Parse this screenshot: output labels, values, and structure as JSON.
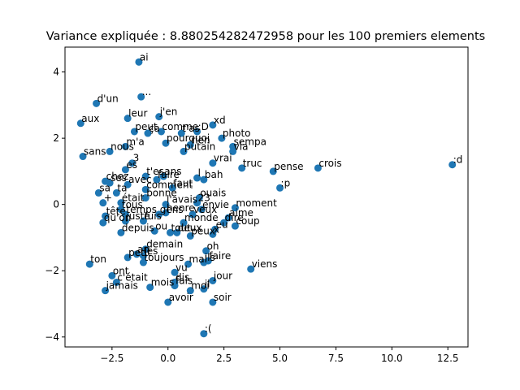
{
  "chart_data": {
    "type": "scatter",
    "title": "Variance expliquée : 8.880254282472958 pour les 100 premiers elements",
    "xlabel": "",
    "ylabel": "",
    "xlim": [
      -4.6,
      13.4
    ],
    "ylim": [
      -4.3,
      4.75
    ],
    "xticks": [
      -2.5,
      0.0,
      2.5,
      5.0,
      7.5,
      10.0,
      12.5
    ],
    "xtick_labels": [
      "−2.5",
      "0.0",
      "2.5",
      "5.0",
      "7.5",
      "10.0",
      "12.5"
    ],
    "yticks": [
      -4,
      -2,
      0,
      2,
      4
    ],
    "ytick_labels": [
      "−4",
      "−2",
      "0",
      "2",
      "4"
    ],
    "grid": false,
    "color": "#1f77b4",
    "points": [
      {
        "label": "ai",
        "x": -1.3,
        "y": 4.3
      },
      {
        "label": "...",
        "x": -1.2,
        "y": 3.25
      },
      {
        "label": "d'un",
        "x": -3.2,
        "y": 3.05
      },
      {
        "label": "aux",
        "x": -3.9,
        "y": 2.45
      },
      {
        "label": "leur",
        "x": -1.8,
        "y": 2.6
      },
      {
        "label": "j'en",
        "x": -0.4,
        "y": 2.65
      },
      {
        "label": "xd",
        "x": 2.0,
        "y": 2.4
      },
      {
        "label": "peut",
        "x": -1.5,
        "y": 2.2
      },
      {
        "label": "ça",
        "x": -0.9,
        "y": 2.15
      },
      {
        "label": "comme",
        "x": -0.3,
        "y": 2.2
      },
      {
        "label": "t'as",
        "x": 0.6,
        "y": 2.15
      },
      {
        "label": ":D",
        "x": 1.3,
        "y": 2.2
      },
      {
        "label": "photo",
        "x": 2.4,
        "y": 2.0
      },
      {
        "label": "pourquoi",
        "x": -0.1,
        "y": 1.85
      },
      {
        "label": "m'a",
        "x": -1.9,
        "y": 1.75
      },
      {
        "label": "nous",
        "x": -2.6,
        "y": 1.6
      },
      {
        "label": "putain",
        "x": 0.7,
        "y": 1.6
      },
      {
        "label": "rien",
        "x": 1.0,
        "y": 1.8
      },
      {
        "label": "sempa",
        "x": 2.9,
        "y": 1.75
      },
      {
        "label": "via",
        "x": 2.9,
        "y": 1.6
      },
      {
        "label": "sans",
        "x": -3.8,
        "y": 1.45
      },
      {
        "label": "3",
        "x": -1.6,
        "y": 1.25
      },
      {
        "label": "vrai",
        "x": 2.0,
        "y": 1.25
      },
      {
        "label": "crois",
        "x": 6.7,
        "y": 1.1
      },
      {
        "label": ":d",
        "x": 12.7,
        "y": 1.2
      },
      {
        "label": "es",
        "x": -1.9,
        "y": 1.05
      },
      {
        "label": "truc",
        "x": 3.3,
        "y": 1.1
      },
      {
        "label": "pense",
        "x": 4.7,
        "y": 1.0
      },
      {
        "label": "bah",
        "x": 1.6,
        "y": 0.75
      },
      {
        "label": "l",
        "x": 1.3,
        "y": 0.8
      },
      {
        "label": "t'es",
        "x": -1.0,
        "y": 0.85
      },
      {
        "label": "ans",
        "x": -0.2,
        "y": 0.85
      },
      {
        "label": "chez",
        "x": -2.8,
        "y": 0.7
      },
      {
        "label": "ses",
        "x": -2.6,
        "y": 0.65
      },
      {
        "label": "avec",
        "x": -1.8,
        "y": 0.6
      },
      {
        "label": "faire",
        "x": -0.5,
        "y": 0.75
      },
      {
        "label": ":p",
        "x": 5.0,
        "y": 0.5
      },
      {
        "label": "faut",
        "x": 0.2,
        "y": 0.5
      },
      {
        "label": "comment",
        "x": -1.0,
        "y": 0.45
      },
      {
        "label": "sa",
        "x": -3.1,
        "y": 0.35
      },
      {
        "label": "ta",
        "x": -2.3,
        "y": 0.35
      },
      {
        "label": "bonne",
        "x": -1.0,
        "y": 0.2
      },
      {
        "label": "ouais",
        "x": 1.4,
        "y": 0.2
      },
      {
        "label": "+",
        "x": -2.9,
        "y": 0.05
      },
      {
        "label": "était",
        "x": -2.1,
        "y": 0.05
      },
      {
        "label": "l'avais",
        "x": -0.1,
        "y": 0.0
      },
      {
        "label": "23",
        "x": 1.3,
        "y": 0.05
      },
      {
        "label": "moment",
        "x": 3.0,
        "y": -0.1
      },
      {
        "label": "tous",
        "x": -2.1,
        "y": -0.15
      },
      {
        "label": "envie",
        "x": 1.5,
        "y": -0.15
      },
      {
        "label": "gens",
        "x": -0.4,
        "y": -0.3
      },
      {
        "label": "henre",
        "x": -0.1,
        "y": -0.25
      },
      {
        "label": "veux",
        "x": 1.1,
        "y": -0.3
      },
      {
        "label": "tête",
        "x": -2.8,
        "y": -0.35
      },
      {
        "label": "temps",
        "x": -1.9,
        "y": -0.3
      },
      {
        "label": "aime",
        "x": 2.7,
        "y": -0.4
      },
      {
        "label": "qu'on",
        "x": -2.9,
        "y": -0.55
      },
      {
        "label": "juste",
        "x": -1.9,
        "y": -0.5
      },
      {
        "label": "fuis",
        "x": -1.1,
        "y": -0.5
      },
      {
        "label": "monde",
        "x": 0.7,
        "y": -0.55
      },
      {
        "label": "dire",
        "x": 2.5,
        "y": -0.55
      },
      {
        "label": "coup",
        "x": 3.0,
        "y": -0.65
      },
      {
        "label": "ou",
        "x": -0.6,
        "y": -0.8
      },
      {
        "label": "eu",
        "x": 2.1,
        "y": -0.75
      },
      {
        "label": "depuis",
        "x": -2.1,
        "y": -0.85
      },
      {
        "label": "tout",
        "x": 0.1,
        "y": -0.85
      },
      {
        "label": "deux",
        "x": 0.4,
        "y": -0.85
      },
      {
        "label": "peux",
        "x": 1.0,
        "y": -0.95
      },
      {
        "label": "x",
        "x": 2.0,
        "y": -0.9
      },
      {
        "label": "demain",
        "x": -1.0,
        "y": -1.35
      },
      {
        "label": "oh",
        "x": 1.7,
        "y": -1.4
      },
      {
        "label": "an",
        "x": -1.4,
        "y": -1.5
      },
      {
        "label": "les",
        "x": -1.1,
        "y": -1.55
      },
      {
        "label": "petit",
        "x": -1.8,
        "y": -1.6
      },
      {
        "label": "toujours",
        "x": -1.1,
        "y": -1.75
      },
      {
        "label": "mal",
        "x": 0.9,
        "y": -1.8
      },
      {
        "label": "ils",
        "x": 1.6,
        "y": -1.75
      },
      {
        "label": "faire",
        "x": 1.8,
        "y": -1.7
      },
      {
        "label": "ton",
        "x": -3.5,
        "y": -1.8
      },
      {
        "label": "viens",
        "x": 3.7,
        "y": -1.95
      },
      {
        "label": "ont",
        "x": -2.5,
        "y": -2.15
      },
      {
        "label": "vu",
        "x": 0.3,
        "y": -2.05
      },
      {
        "label": "jour",
        "x": 2.0,
        "y": -2.3
      },
      {
        "label": "c'était",
        "x": -2.3,
        "y": -2.35
      },
      {
        "label": "dis",
        "x": 0.3,
        "y": -2.35
      },
      {
        "label": "mois",
        "x": -0.8,
        "y": -2.5
      },
      {
        "label": "fais",
        "x": 0.3,
        "y": -2.45
      },
      {
        "label": "jamais",
        "x": -2.8,
        "y": -2.6
      },
      {
        "label": "moi",
        "x": 1.0,
        "y": -2.6
      },
      {
        "label": "il",
        "x": 1.6,
        "y": -2.55
      },
      {
        "label": "avoir",
        "x": 0.0,
        "y": -2.95
      },
      {
        "label": "soir",
        "x": 2.0,
        "y": -2.95
      },
      {
        "label": ":(",
        "x": 1.6,
        "y": -3.9
      }
    ]
  }
}
